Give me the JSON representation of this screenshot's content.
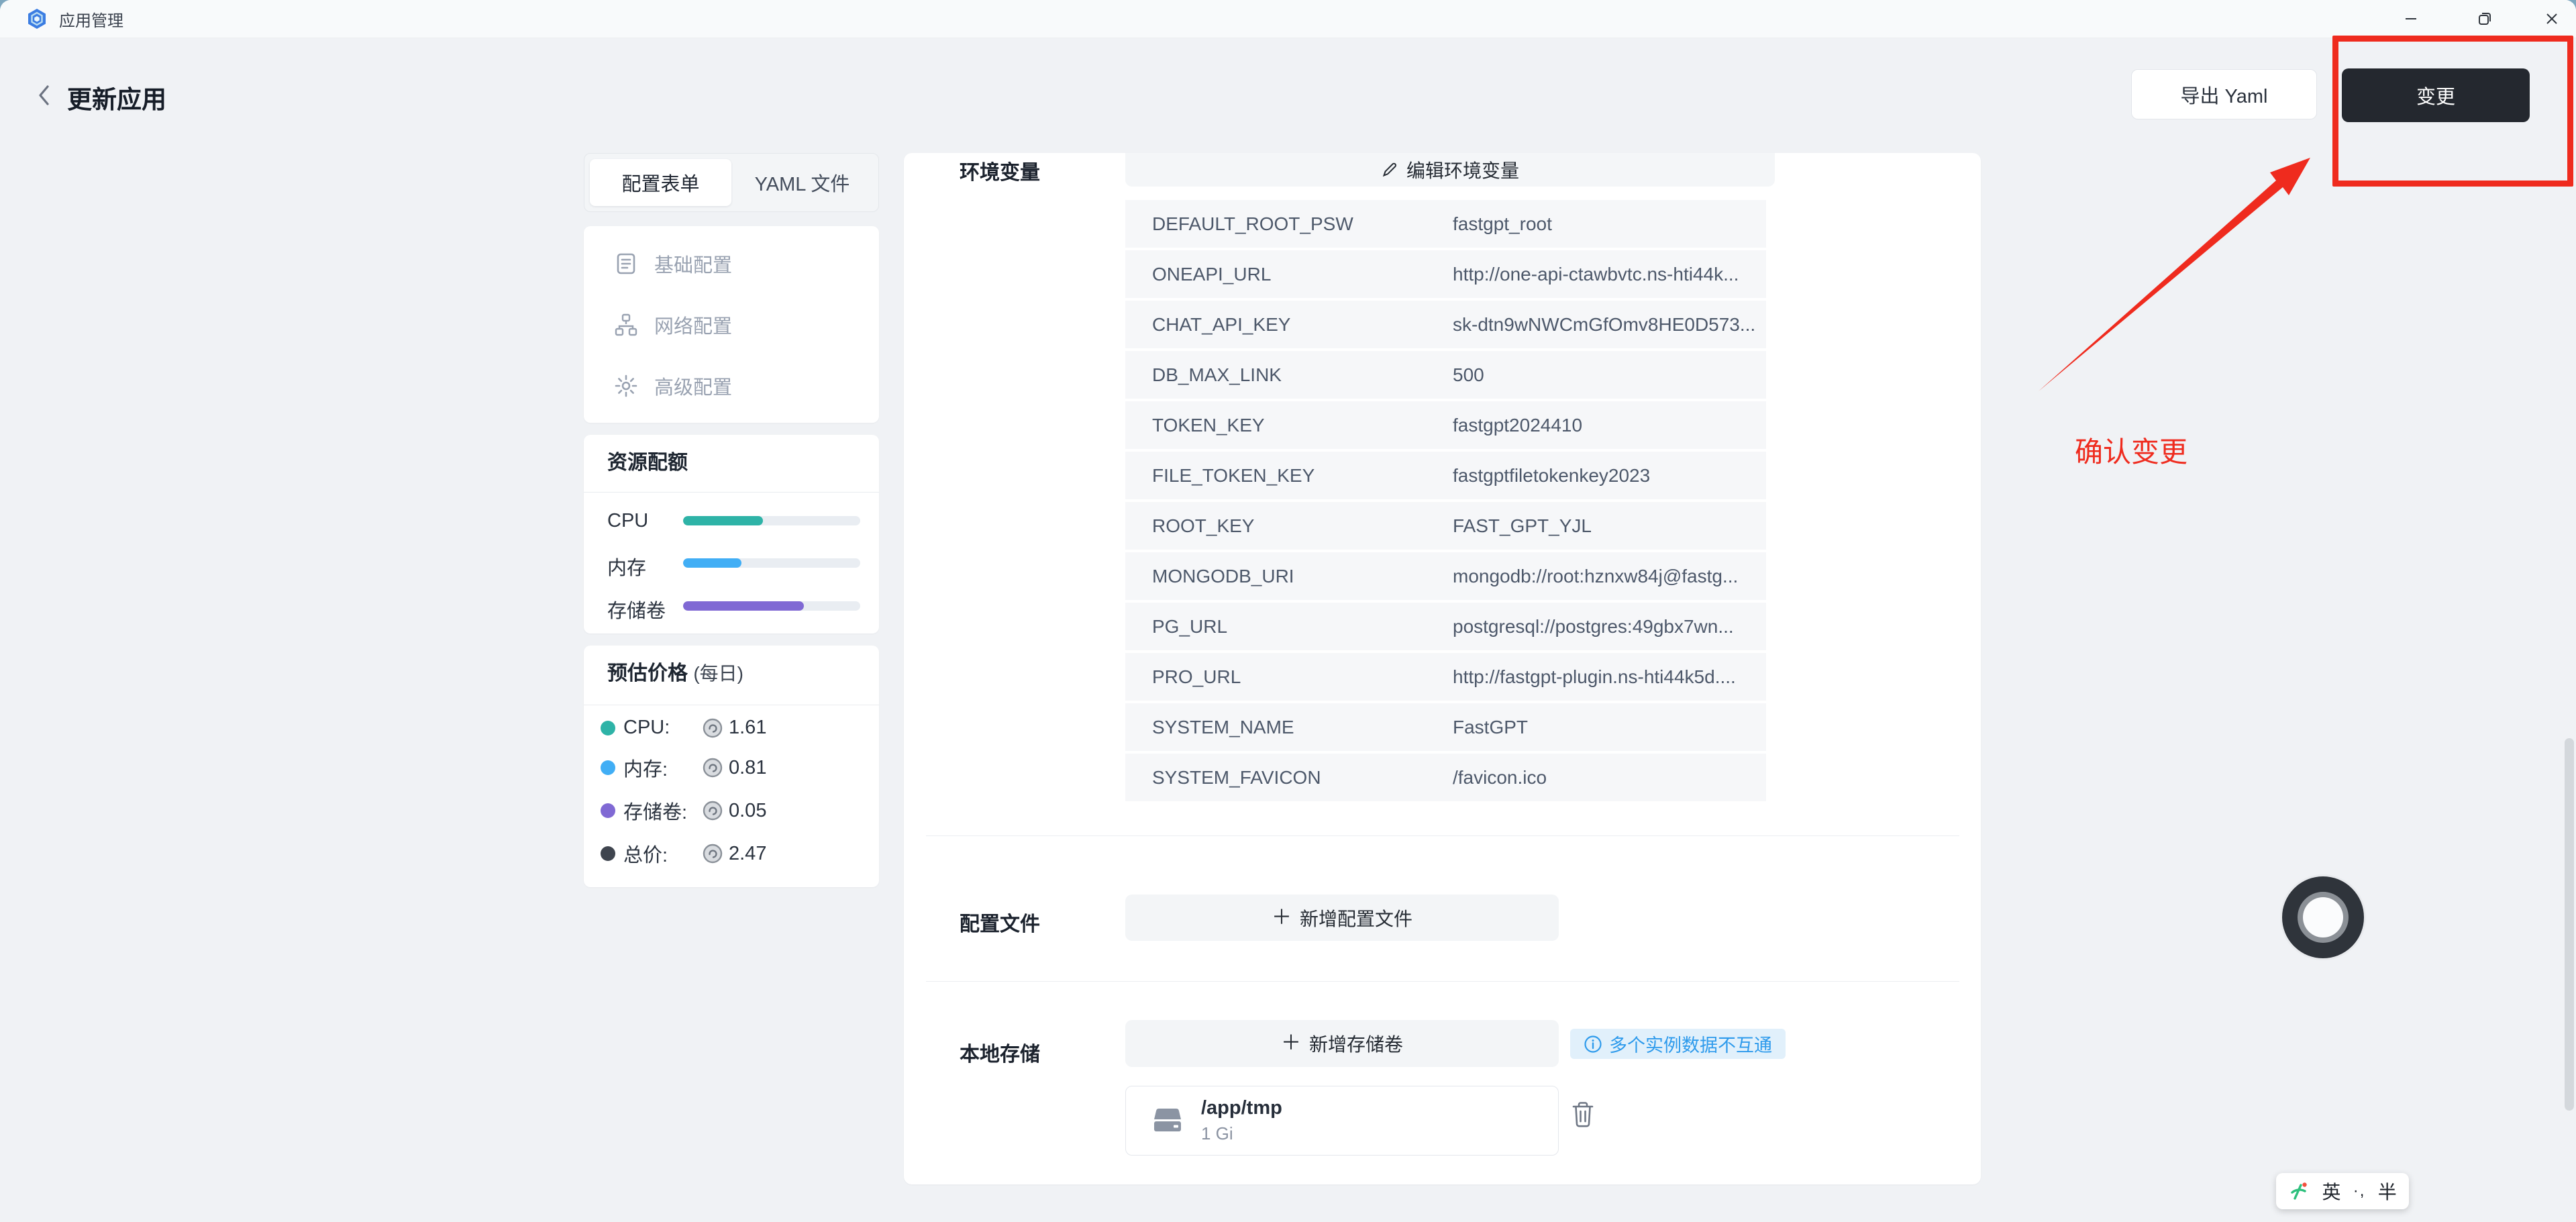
{
  "window": {
    "title": "应用管理"
  },
  "header": {
    "title": "更新应用",
    "export_button": "导出 Yaml",
    "apply_button": "变更"
  },
  "sidebar": {
    "tabs": [
      {
        "label": "配置表单",
        "active": true
      },
      {
        "label": "YAML 文件",
        "active": false
      }
    ],
    "menu": [
      {
        "label": "基础配置"
      },
      {
        "label": "网络配置"
      },
      {
        "label": "高级配置"
      }
    ],
    "quota": {
      "title": "资源配额",
      "rows": [
        {
          "label": "CPU",
          "percent": 45,
          "color": "#2eb3a7"
        },
        {
          "label": "内存",
          "percent": 33,
          "color": "#41aef5"
        },
        {
          "label": "存储卷",
          "percent": 68,
          "color": "#8069d4"
        }
      ]
    },
    "price": {
      "title": "预估价格",
      "subtitle": "(每日)",
      "rows": [
        {
          "label": "CPU:",
          "value": "1.61",
          "dot": "#2eb3a7"
        },
        {
          "label": "内存:",
          "value": "0.81",
          "dot": "#41aef5"
        },
        {
          "label": "存储卷:",
          "value": "0.05",
          "dot": "#8069d4"
        },
        {
          "label": "总价:",
          "value": "2.47",
          "dot": "#3f454f"
        }
      ]
    }
  },
  "main": {
    "env": {
      "title": "环境变量",
      "edit_button": "编辑环境变量",
      "rows": [
        {
          "key": "DEFAULT_ROOT_PSW",
          "value": "fastgpt_root"
        },
        {
          "key": "ONEAPI_URL",
          "value": "http://one-api-ctawbvtc.ns-hti44k..."
        },
        {
          "key": "CHAT_API_KEY",
          "value": "sk-dtn9wNWCmGfOmv8HE0D573..."
        },
        {
          "key": "DB_MAX_LINK",
          "value": "500"
        },
        {
          "key": "TOKEN_KEY",
          "value": "fastgpt2024410"
        },
        {
          "key": "FILE_TOKEN_KEY",
          "value": "fastgptfiletokenkey2023"
        },
        {
          "key": "ROOT_KEY",
          "value": "FAST_GPT_YJL"
        },
        {
          "key": "MONGODB_URI",
          "value": "mongodb://root:hznxw84j@fastg..."
        },
        {
          "key": "PG_URL",
          "value": "postgresql://postgres:49gbx7wn..."
        },
        {
          "key": "PRO_URL",
          "value": "http://fastgpt-plugin.ns-hti44k5d...."
        },
        {
          "key": "SYSTEM_NAME",
          "value": "FastGPT"
        },
        {
          "key": "SYSTEM_FAVICON",
          "value": "/favicon.ico"
        }
      ]
    },
    "config_file": {
      "title": "配置文件",
      "add_button": "新增配置文件",
      "plus": "＋"
    },
    "local_storage": {
      "title": "本地存储",
      "add_button": "新增存储卷",
      "plus": "＋",
      "info_badge": "多个实例数据不互通",
      "volume": {
        "path": "/app/tmp",
        "size": "1 Gi"
      }
    }
  },
  "annotations": {
    "label": "确认变更",
    "color": "#ef2b1e"
  },
  "ime": {
    "lang": "英",
    "punct": "·,",
    "width_mode": "半"
  }
}
